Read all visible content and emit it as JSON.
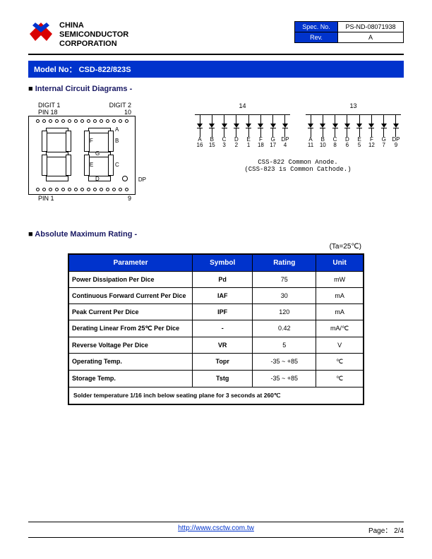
{
  "header": {
    "company_line1": "CHINA",
    "company_line2": "SEMICONDUCTOR",
    "company_line3": "CORPORATION",
    "spec_label": "Spec. No.",
    "spec_value": "PS-ND-08071938",
    "rev_label": "Rev.",
    "rev_value": "A",
    "logo_colors": {
      "primary": "#d90000",
      "accent": "#0033cc"
    }
  },
  "model_bar": {
    "prefix": "Model No：",
    "model": "CSD-822/823S"
  },
  "sections": {
    "circuit_title": "Internal Circuit Diagrams -",
    "rating_title": "Absolute Maximum Rating -"
  },
  "seg_display": {
    "digit1_label": "DIGIT 1",
    "digit2_label": "DIGIT 2",
    "pin18": "PIN 18",
    "pin10": "10",
    "pin1": "PIN 1",
    "pin9": "9",
    "dp_label": "DP",
    "segments": [
      "A",
      "B",
      "C",
      "D",
      "E",
      "F",
      "G"
    ]
  },
  "circuit": {
    "left_common_pin": "14",
    "right_common_pin": "13",
    "left_pins": [
      {
        "l": "A",
        "n": "16"
      },
      {
        "l": "B",
        "n": "15"
      },
      {
        "l": "C",
        "n": "3"
      },
      {
        "l": "D",
        "n": "2"
      },
      {
        "l": "E",
        "n": "1"
      },
      {
        "l": "F",
        "n": "18"
      },
      {
        "l": "G",
        "n": "17"
      },
      {
        "l": "DP",
        "n": "4"
      }
    ],
    "right_pins": [
      {
        "l": "A",
        "n": "11"
      },
      {
        "l": "B",
        "n": "10"
      },
      {
        "l": "C",
        "n": "8"
      },
      {
        "l": "D",
        "n": "6"
      },
      {
        "l": "E",
        "n": "5"
      },
      {
        "l": "F",
        "n": "12"
      },
      {
        "l": "G",
        "n": "7"
      },
      {
        "l": "DP",
        "n": "9"
      }
    ],
    "caption1": "CSS-822 Common Anode.",
    "caption2": "(CSS-823 is Common Cathode.)"
  },
  "ta_note": "(Ta=25℃)",
  "rating_table": {
    "headers": [
      "Parameter",
      "Symbol",
      "Rating",
      "Unit"
    ],
    "rows": [
      {
        "param": "Power Dissipation Per Dice",
        "sym": "Pd",
        "rating": "75",
        "unit": "mW"
      },
      {
        "param": "Continuous Forward Current Per Dice",
        "sym": "IAF",
        "rating": "30",
        "unit": "mA"
      },
      {
        "param": "Peak Current Per Dice",
        "sym": "IPF",
        "rating": "120",
        "unit": "mA"
      },
      {
        "param": "Derating Linear From 25℃ Per Dice",
        "sym": "-",
        "rating": "0.42",
        "unit": "mA/℃"
      },
      {
        "param": "Reverse Voltage Per Dice",
        "sym": "VR",
        "rating": "5",
        "unit": "V"
      },
      {
        "param": "Operating Temp.",
        "sym": "Topr",
        "rating": "-35 ~ +85",
        "unit": "℃"
      },
      {
        "param": "Storage Temp.",
        "sym": "Tstg",
        "rating": "-35 ~ +85",
        "unit": "℃"
      }
    ],
    "note": "Solder temperature 1/16 inch below seating plane for 3 seconds at 260℃"
  },
  "footer": {
    "url": "http://www.csctw.com.tw",
    "page_label": "Page：",
    "page_value": "2/4"
  },
  "colors": {
    "brand_blue": "#0033cc",
    "text_dark": "#181863",
    "black": "#000000",
    "white": "#ffffff"
  }
}
